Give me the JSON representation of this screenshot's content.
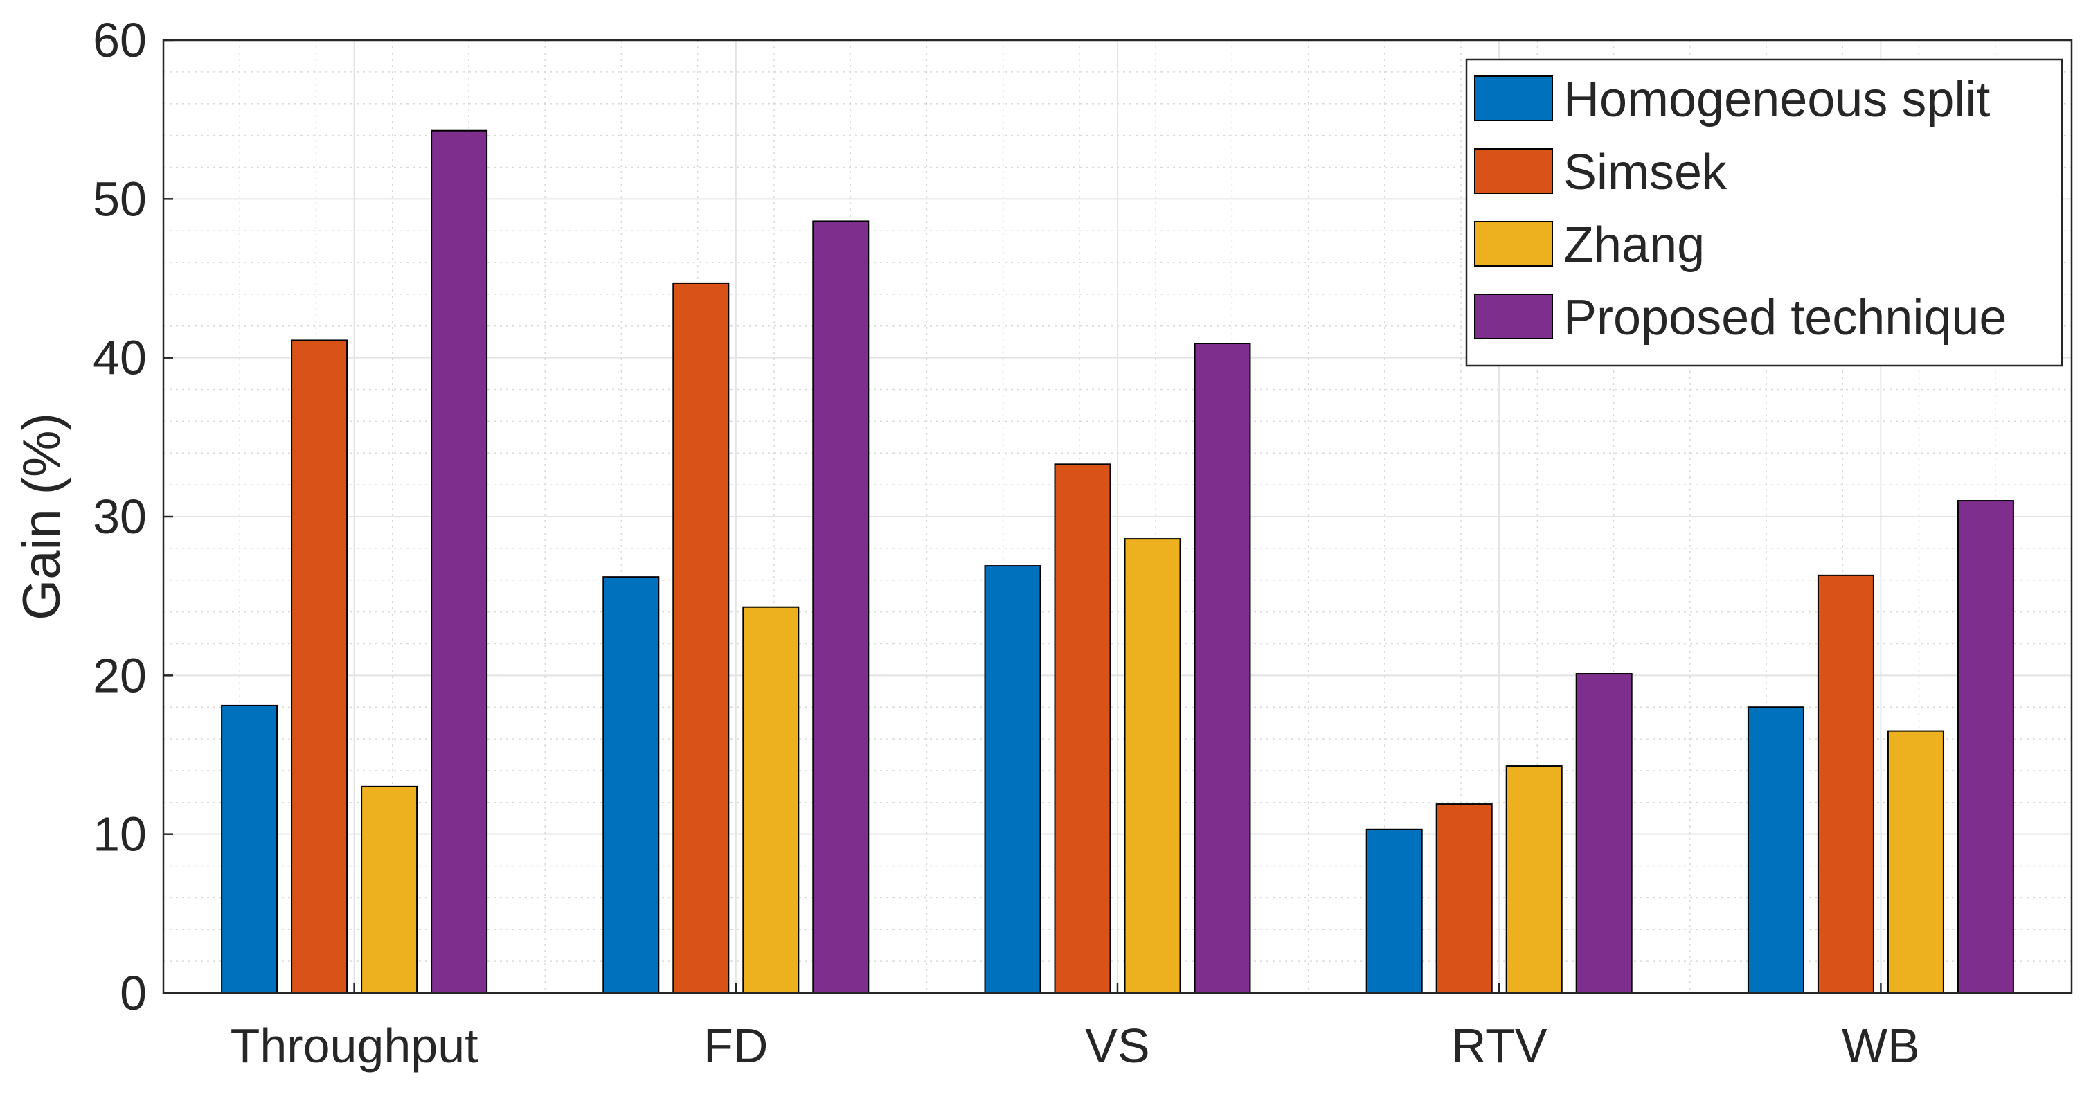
{
  "chart_data": {
    "type": "bar",
    "title": "",
    "xlabel": "",
    "ylabel": "Gain (%)",
    "ylim": [
      0,
      60
    ],
    "yticks": [
      0,
      10,
      20,
      30,
      40,
      50,
      60
    ],
    "grid": true,
    "minor_grid": true,
    "legend_position": "top-right",
    "categories": [
      "Throughput",
      "FD",
      "VS",
      "RTV",
      "WB"
    ],
    "series": [
      {
        "name": "Homogeneous split",
        "color": "#0072BD",
        "values": [
          18.1,
          26.2,
          26.9,
          10.3,
          18.0
        ]
      },
      {
        "name": "Simsek",
        "color": "#D95319",
        "values": [
          41.1,
          44.7,
          33.3,
          11.9,
          26.3
        ]
      },
      {
        "name": "Zhang",
        "color": "#EDB120",
        "values": [
          13.0,
          24.3,
          28.6,
          14.3,
          16.5
        ]
      },
      {
        "name": "Proposed technique",
        "color": "#7E2F8E",
        "values": [
          54.3,
          48.6,
          40.9,
          20.1,
          31.0
        ]
      }
    ]
  }
}
